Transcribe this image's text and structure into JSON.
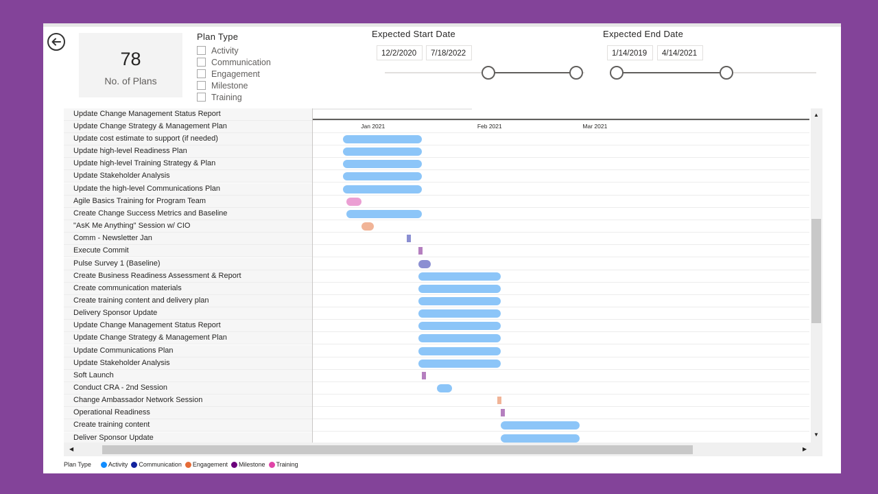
{
  "colors": {
    "background": "#834399",
    "activity": "#118DFF",
    "communication": "#12239E",
    "engagement": "#E66C37",
    "milestone": "#6B007B",
    "training": "#E044A7",
    "bar_activity": "#8CC5F8",
    "bar_communication": "#8B8FD2",
    "bar_engagement": "#F1B497",
    "bar_milestone": "#B57FBF",
    "bar_training": "#EB9FD3"
  },
  "kpi": {
    "value": "78",
    "label": "No. of Plans"
  },
  "plan_type_filter": {
    "title": "Plan Type",
    "options": [
      "Activity",
      "Communication",
      "Engagement",
      "Milestone",
      "Training"
    ]
  },
  "start_date_slicer": {
    "title": "Expected Start Date",
    "from": "12/2/2020",
    "to": "7/18/2022"
  },
  "end_date_slicer": {
    "title": "Expected End Date",
    "from": "1/14/2019",
    "to": "4/14/2021"
  },
  "chart_data": {
    "type": "bar",
    "subtype": "gantt",
    "x_axis": {
      "ticks": [
        "Jan 2021",
        "Feb 2021",
        "Mar 2021"
      ],
      "range": [
        "2020-12-16",
        "2021-04-27"
      ]
    },
    "tasks": [
      {
        "name": "Update Change Management Status Report",
        "type": "",
        "start": "",
        "end": ""
      },
      {
        "name": "Update Change Strategy & Management Plan",
        "type": "",
        "start": "",
        "end": ""
      },
      {
        "name": "Update cost estimate to support (if needed)",
        "type": "Activity",
        "start": "2020-12-24",
        "end": "2021-01-13"
      },
      {
        "name": "Update high-level Readiness Plan",
        "type": "Activity",
        "start": "2020-12-24",
        "end": "2021-01-13"
      },
      {
        "name": "Update high-level Training Strategy & Plan",
        "type": "Activity",
        "start": "2020-12-24",
        "end": "2021-01-13"
      },
      {
        "name": "Update Stakeholder Analysis",
        "type": "Activity",
        "start": "2020-12-24",
        "end": "2021-01-13"
      },
      {
        "name": "Update the high-level Communications Plan",
        "type": "Activity",
        "start": "2020-12-24",
        "end": "2021-01-13"
      },
      {
        "name": "Agile Basics Training for Program Team",
        "type": "Training",
        "start": "2020-12-25",
        "end": "2020-12-28"
      },
      {
        "name": "Create Change Success Metrics and Baseline",
        "type": "Activity",
        "start": "2020-12-25",
        "end": "2021-01-13"
      },
      {
        "name": "\"AsK Me Anything\" Session w/ CIO",
        "type": "Engagement",
        "start": "2020-12-29",
        "end": "2020-12-31"
      },
      {
        "name": "Comm - Newsletter Jan",
        "type": "Communication",
        "start": "2021-01-10",
        "end": "2021-01-10"
      },
      {
        "name": "Execute Commit",
        "type": "Milestone",
        "start": "2021-01-13",
        "end": "2021-01-13"
      },
      {
        "name": "Pulse Survey 1 (Baseline)",
        "type": "Communication",
        "start": "2021-01-13",
        "end": "2021-01-14"
      },
      {
        "name": "Create Business Readiness Assessment & Report",
        "type": "Activity",
        "start": "2021-01-13",
        "end": "2021-02-03"
      },
      {
        "name": "Create communication materials",
        "type": "Activity",
        "start": "2021-01-13",
        "end": "2021-02-03"
      },
      {
        "name": "Create training content and delivery plan",
        "type": "Activity",
        "start": "2021-01-13",
        "end": "2021-02-03"
      },
      {
        "name": "Delivery Sponsor Update",
        "type": "Activity",
        "start": "2021-01-13",
        "end": "2021-02-03"
      },
      {
        "name": "Update Change Management Status Report",
        "type": "Activity",
        "start": "2021-01-13",
        "end": "2021-02-03"
      },
      {
        "name": "Update Change Strategy & Management Plan",
        "type": "Activity",
        "start": "2021-01-13",
        "end": "2021-02-03"
      },
      {
        "name": "Update Communications Plan",
        "type": "Activity",
        "start": "2021-01-13",
        "end": "2021-02-03"
      },
      {
        "name": "Update Stakeholder Analysis",
        "type": "Activity",
        "start": "2021-01-13",
        "end": "2021-02-03"
      },
      {
        "name": "Soft Launch",
        "type": "Milestone",
        "start": "2021-01-14",
        "end": "2021-01-14"
      },
      {
        "name": "Conduct CRA - 2nd Session",
        "type": "Activity",
        "start": "2021-01-18",
        "end": "2021-01-21"
      },
      {
        "name": "Change Ambassador Network Session",
        "type": "Engagement",
        "start": "2021-02-03",
        "end": "2021-02-03"
      },
      {
        "name": "Operational Readiness",
        "type": "Milestone",
        "start": "2021-02-04",
        "end": "2021-02-04"
      },
      {
        "name": "Create training content",
        "type": "Activity",
        "start": "2021-02-04",
        "end": "2021-02-24"
      },
      {
        "name": "Deliver Sponsor Update",
        "type": "Activity",
        "start": "2021-02-04",
        "end": "2021-02-24"
      }
    ]
  },
  "legend": {
    "title": "Plan Type",
    "items": [
      "Activity",
      "Communication",
      "Engagement",
      "Milestone",
      "Training"
    ]
  },
  "scroll": {
    "up": "▲",
    "down": "▼",
    "left": "◀",
    "right": "▶"
  }
}
